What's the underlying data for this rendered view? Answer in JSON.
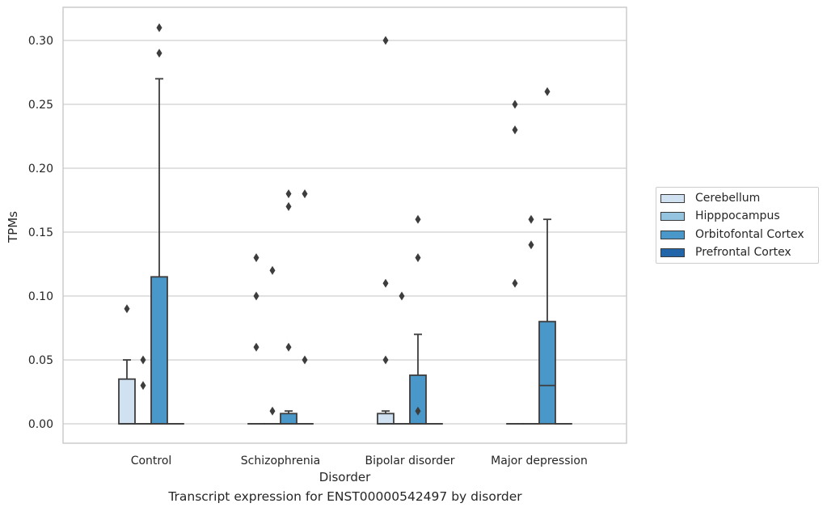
{
  "caption": "Transcript expression for ENST00000542497 by disorder",
  "chart_data": {
    "type": "box",
    "title": "",
    "xlabel": "Disorder",
    "ylabel": "TPMs",
    "ylim": [
      -0.015,
      0.326
    ],
    "yticks": [
      0.0,
      0.05,
      0.1,
      0.15,
      0.2,
      0.25,
      0.3
    ],
    "ytick_labels": [
      "0.00",
      "0.05",
      "0.10",
      "0.15",
      "0.20",
      "0.25",
      "0.30"
    ],
    "grid": true,
    "legend_position": "right-outside",
    "categories": [
      "Control",
      "Schizophrenia",
      "Bipolar disorder",
      "Major depression"
    ],
    "series": [
      {
        "name": "Cerebellum",
        "color": "#d0e1f2",
        "boxes": [
          {
            "q1": 0.0,
            "median": 0.0,
            "q3": 0.035,
            "whislo": 0.0,
            "whishi": 0.05,
            "fliers": [
              0.09
            ]
          },
          {
            "q1": 0.0,
            "median": 0.0,
            "q3": 0.0,
            "whislo": 0.0,
            "whishi": 0.0,
            "fliers": [
              0.13,
              0.1,
              0.06
            ]
          },
          {
            "q1": 0.0,
            "median": 0.0,
            "q3": 0.008,
            "whislo": 0.0,
            "whishi": 0.01,
            "fliers": [
              0.3,
              0.11,
              0.05
            ]
          },
          {
            "q1": 0.0,
            "median": 0.0,
            "q3": 0.0,
            "whislo": 0.0,
            "whishi": 0.0,
            "fliers": [
              0.25,
              0.23,
              0.11
            ]
          }
        ]
      },
      {
        "name": "Hipppocampus",
        "color": "#94c4df",
        "boxes": [
          {
            "q1": 0.0,
            "median": 0.0,
            "q3": 0.0,
            "whislo": 0.0,
            "whishi": 0.0,
            "fliers": [
              0.05,
              0.03
            ]
          },
          {
            "q1": 0.0,
            "median": 0.0,
            "q3": 0.0,
            "whislo": 0.0,
            "whishi": 0.0,
            "fliers": [
              0.12,
              0.01
            ]
          },
          {
            "q1": 0.0,
            "median": 0.0,
            "q3": 0.0,
            "whislo": 0.0,
            "whishi": 0.0,
            "fliers": [
              0.1
            ]
          },
          {
            "q1": 0.0,
            "median": 0.0,
            "q3": 0.0,
            "whislo": 0.0,
            "whishi": 0.0,
            "fliers": [
              0.16,
              0.14
            ]
          }
        ]
      },
      {
        "name": "Orbitofontal Cortex",
        "color": "#4a98c9",
        "boxes": [
          {
            "q1": 0.0,
            "median": 0.0,
            "q3": 0.115,
            "whislo": 0.0,
            "whishi": 0.27,
            "fliers": [
              0.31,
              0.29
            ]
          },
          {
            "q1": 0.0,
            "median": 0.0,
            "q3": 0.008,
            "whislo": 0.0,
            "whishi": 0.01,
            "fliers": [
              0.18,
              0.17,
              0.06
            ]
          },
          {
            "q1": 0.0,
            "median": 0.0,
            "q3": 0.038,
            "whislo": 0.0,
            "whishi": 0.07,
            "fliers": [
              0.16,
              0.13,
              0.01
            ]
          },
          {
            "q1": 0.0,
            "median": 0.03,
            "q3": 0.08,
            "whislo": 0.0,
            "whishi": 0.16,
            "fliers": [
              0.26
            ]
          }
        ]
      },
      {
        "name": "Prefrontal Cortex",
        "color": "#2265a8",
        "boxes": [
          {
            "q1": 0.0,
            "median": 0.0,
            "q3": 0.0,
            "whislo": 0.0,
            "whishi": 0.0,
            "fliers": []
          },
          {
            "q1": 0.0,
            "median": 0.0,
            "q3": 0.0,
            "whislo": 0.0,
            "whishi": 0.0,
            "fliers": [
              0.18,
              0.05
            ]
          },
          {
            "q1": 0.0,
            "median": 0.0,
            "q3": 0.0,
            "whislo": 0.0,
            "whishi": 0.0,
            "fliers": []
          },
          {
            "q1": 0.0,
            "median": 0.0,
            "q3": 0.0,
            "whislo": 0.0,
            "whishi": 0.0,
            "fliers": []
          }
        ]
      }
    ]
  }
}
